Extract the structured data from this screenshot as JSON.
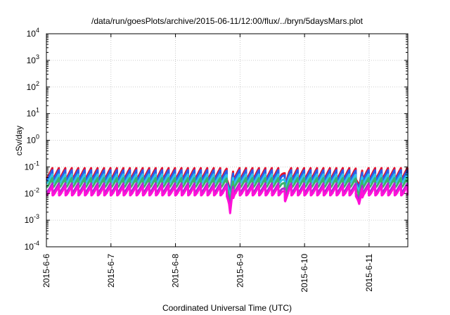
{
  "chart_data": {
    "type": "line",
    "title": "/data/run/goesPlots/archive/2015-06-11/12:00/flux/../bryn/5daysMars.plot",
    "xlabel": "Coordinated Universal Time (UTC)",
    "ylabel": "cSv/day",
    "yscale": "log",
    "ylim": [
      0.0001,
      10000
    ],
    "xlim": [
      0,
      5.6
    ],
    "grid": true,
    "x_start_date": "2015-6-6",
    "x_ticks": [
      {
        "value": 0,
        "label": "2015-6-6"
      },
      {
        "value": 1,
        "label": "2015-6-7"
      },
      {
        "value": 2,
        "label": "2015-6-8"
      },
      {
        "value": 3,
        "label": "2015-6-9"
      },
      {
        "value": 4,
        "label": "2015-6-10"
      },
      {
        "value": 5,
        "label": "2015-6-11"
      }
    ],
    "y_ticks": [
      {
        "value": 0.0001,
        "mantissa": "10",
        "exp": "-4"
      },
      {
        "value": 0.001,
        "mantissa": "10",
        "exp": "-3"
      },
      {
        "value": 0.01,
        "mantissa": "10",
        "exp": "-2"
      },
      {
        "value": 0.1,
        "mantissa": "10",
        "exp": "-1"
      },
      {
        "value": 1,
        "mantissa": "10",
        "exp": "0"
      },
      {
        "value": 10,
        "mantissa": "10",
        "exp": "1"
      },
      {
        "value": 100,
        "mantissa": "10",
        "exp": "2"
      },
      {
        "value": 1000,
        "mantissa": "10",
        "exp": "3"
      },
      {
        "value": 10000,
        "mantissa": "10",
        "exp": "4"
      }
    ],
    "sawtooth_period_days": 0.1,
    "series": [
      {
        "color": "#e8102a",
        "peak": 0.09,
        "trough": 0.037
      },
      {
        "color": "#2a5ee8",
        "peak": 0.075,
        "trough": 0.031
      },
      {
        "color": "#2ec6e6",
        "peak": 0.052,
        "trough": 0.024
      },
      {
        "color": "#3db36a",
        "peak": 0.038,
        "trough": 0.017
      },
      {
        "color": "#b02ad0",
        "peak": 0.024,
        "trough": 0.011
      },
      {
        "color": "#ff10d8",
        "peak": 0.019,
        "trough": 0.0085
      }
    ],
    "dips": [
      {
        "x": 2.85,
        "scale": 0.1
      },
      {
        "x": 4.85,
        "scale": 0.3
      },
      {
        "x": 3.7,
        "scale": 0.6
      }
    ]
  }
}
